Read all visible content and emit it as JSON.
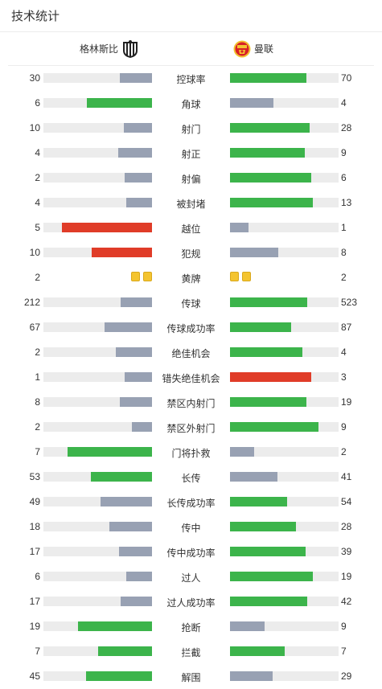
{
  "header": {
    "title": "技术统计"
  },
  "teams": {
    "home": "格林斯比",
    "away": "曼联"
  },
  "colors": {
    "win": "#3cb44b",
    "lose": "#98a1b3",
    "red": "#e03c28",
    "track": "#ececec",
    "yellow": "#f4c430"
  },
  "stats": [
    {
      "label": "控球率",
      "home": 30,
      "away": 70,
      "hw": 0.3,
      "aw": 0.7,
      "hc": "lose",
      "ac": "win"
    },
    {
      "label": "角球",
      "home": 6,
      "away": 4,
      "hw": 0.6,
      "aw": 0.4,
      "hc": "win",
      "ac": "lose"
    },
    {
      "label": "射门",
      "home": 10,
      "away": 28,
      "hw": 0.263,
      "aw": 0.737,
      "hc": "lose",
      "ac": "win"
    },
    {
      "label": "射正",
      "home": 4,
      "away": 9,
      "hw": 0.308,
      "aw": 0.692,
      "hc": "lose",
      "ac": "win"
    },
    {
      "label": "射偏",
      "home": 2,
      "away": 6,
      "hw": 0.25,
      "aw": 0.75,
      "hc": "lose",
      "ac": "win"
    },
    {
      "label": "被封堵",
      "home": 4,
      "away": 13,
      "hw": 0.235,
      "aw": 0.765,
      "hc": "lose",
      "ac": "win"
    },
    {
      "label": "越位",
      "home": 5,
      "away": 1,
      "hw": 0.833,
      "aw": 0.167,
      "hc": "red",
      "ac": "lose"
    },
    {
      "label": "犯规",
      "home": 10,
      "away": 8,
      "hw": 0.556,
      "aw": 0.444,
      "hc": "red",
      "ac": "lose"
    },
    {
      "label": "黄牌",
      "home": 2,
      "away": 2,
      "cards": true
    },
    {
      "label": "传球",
      "home": 212,
      "away": 523,
      "hw": 0.288,
      "aw": 0.712,
      "hc": "lose",
      "ac": "win"
    },
    {
      "label": "传球成功率",
      "home": 67,
      "away": 87,
      "hw": 0.435,
      "aw": 0.565,
      "hc": "lose",
      "ac": "win"
    },
    {
      "label": "绝佳机会",
      "home": 2,
      "away": 4,
      "hw": 0.333,
      "aw": 0.667,
      "hc": "lose",
      "ac": "win"
    },
    {
      "label": "错失绝佳机会",
      "home": 1,
      "away": 3,
      "hw": 0.25,
      "aw": 0.75,
      "hc": "lose",
      "ac": "red"
    },
    {
      "label": "禁区内射门",
      "home": 8,
      "away": 19,
      "hw": 0.296,
      "aw": 0.704,
      "hc": "lose",
      "ac": "win"
    },
    {
      "label": "禁区外射门",
      "home": 2,
      "away": 9,
      "hw": 0.182,
      "aw": 0.818,
      "hc": "lose",
      "ac": "win"
    },
    {
      "label": "门将扑救",
      "home": 7,
      "away": 2,
      "hw": 0.778,
      "aw": 0.222,
      "hc": "win",
      "ac": "lose"
    },
    {
      "label": "长传",
      "home": 53,
      "away": 41,
      "hw": 0.564,
      "aw": 0.436,
      "hc": "win",
      "ac": "lose"
    },
    {
      "label": "长传成功率",
      "home": 49,
      "away": 54,
      "hw": 0.476,
      "aw": 0.524,
      "hc": "lose",
      "ac": "win"
    },
    {
      "label": "传中",
      "home": 18,
      "away": 28,
      "hw": 0.391,
      "aw": 0.609,
      "hc": "lose",
      "ac": "win"
    },
    {
      "label": "传中成功率",
      "home": 17,
      "away": 39,
      "hw": 0.304,
      "aw": 0.696,
      "hc": "lose",
      "ac": "win"
    },
    {
      "label": "过人",
      "home": 6,
      "away": 19,
      "hw": 0.24,
      "aw": 0.76,
      "hc": "lose",
      "ac": "win"
    },
    {
      "label": "过人成功率",
      "home": 17,
      "away": 42,
      "hw": 0.288,
      "aw": 0.712,
      "hc": "lose",
      "ac": "win"
    },
    {
      "label": "抢断",
      "home": 19,
      "away": 9,
      "hw": 0.679,
      "aw": 0.321,
      "hc": "win",
      "ac": "lose"
    },
    {
      "label": "拦截",
      "home": 7,
      "away": 7,
      "hw": 0.5,
      "aw": 0.5,
      "hc": "win",
      "ac": "win"
    },
    {
      "label": "解围",
      "home": 45,
      "away": 29,
      "hw": 0.608,
      "aw": 0.392,
      "hc": "win",
      "ac": "lose"
    }
  ]
}
